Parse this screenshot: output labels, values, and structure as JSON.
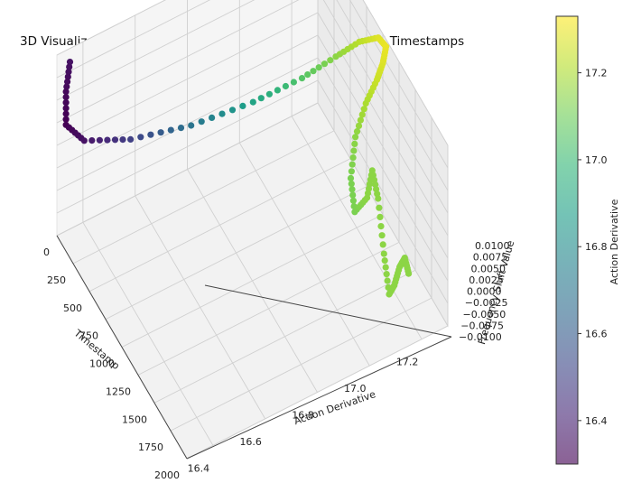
{
  "chart_data": {
    "type": "scatter",
    "projection": "3d",
    "title": "3D Visualization of Action Derivative, Chaotic Numbers, and Timestamps",
    "xlabel": "Timestamp",
    "ylabel": "Action Derivative",
    "zlabel": "Frequency Shift Value",
    "colorbar_label": "Action Derivative",
    "colormap": "viridis",
    "grid": true,
    "x_ticks": [
      "0",
      "250",
      "500",
      "750",
      "1000",
      "1250",
      "1500",
      "1750",
      "2000"
    ],
    "y_ticks": [
      "16.4",
      "16.6",
      "16.8",
      "17.0",
      "17.2"
    ],
    "z_ticks": [
      "−0.0100",
      "−0.0075",
      "−0.0050",
      "−0.0025",
      "0.0000",
      "0.0025",
      "0.0050",
      "0.0075",
      "0.0100"
    ],
    "colorbar_ticks": [
      "16.4",
      "16.6",
      "16.8",
      "17.0",
      "17.2"
    ],
    "colorbar_range": [
      16.3,
      17.33
    ],
    "x_range": [
      0,
      2000
    ],
    "y_range": [
      16.3,
      17.3
    ],
    "z_range": [
      -0.01,
      0.01
    ],
    "series": [
      {
        "points": [
          {
            "t": 0,
            "a": 16.35,
            "f": 0.0085
          },
          {
            "t": 60,
            "a": 16.32,
            "f": 0.0064
          },
          {
            "t": 140,
            "a": 16.3,
            "f": 0.004
          },
          {
            "t": 220,
            "a": 16.35,
            "f": 0.0025
          },
          {
            "t": 330,
            "a": 16.5,
            "f": 0.0018
          },
          {
            "t": 460,
            "a": 16.7,
            "f": 0.002
          },
          {
            "t": 610,
            "a": 16.9,
            "f": 0.0035
          },
          {
            "t": 760,
            "a": 17.05,
            "f": 0.0058
          },
          {
            "t": 880,
            "a": 17.15,
            "f": 0.0082
          },
          {
            "t": 960,
            "a": 17.22,
            "f": 0.0098
          },
          {
            "t": 1010,
            "a": 17.28,
            "f": 0.01
          },
          {
            "t": 1050,
            "a": 17.3,
            "f": 0.0092
          },
          {
            "t": 1080,
            "a": 17.28,
            "f": 0.008
          },
          {
            "t": 1110,
            "a": 17.25,
            "f": 0.007
          },
          {
            "t": 1140,
            "a": 17.2,
            "f": 0.0055
          },
          {
            "t": 1180,
            "a": 17.15,
            "f": 0.003
          },
          {
            "t": 1230,
            "a": 17.12,
            "f": -0.0005
          },
          {
            "t": 1290,
            "a": 17.12,
            "f": -0.0035
          },
          {
            "t": 1360,
            "a": 17.15,
            "f": -0.0015
          },
          {
            "t": 1440,
            "a": 17.15,
            "f": 0.0025
          },
          {
            "t": 1530,
            "a": 17.15,
            "f": 0.0005
          },
          {
            "t": 1620,
            "a": 17.15,
            "f": -0.0045
          },
          {
            "t": 1700,
            "a": 17.15,
            "f": -0.008
          },
          {
            "t": 1780,
            "a": 17.15,
            "f": -0.006
          },
          {
            "t": 1860,
            "a": 17.15,
            "f": -0.003
          },
          {
            "t": 1940,
            "a": 17.15,
            "f": -0.001
          },
          {
            "t": 2000,
            "a": 17.15,
            "f": -0.002
          }
        ]
      }
    ]
  }
}
